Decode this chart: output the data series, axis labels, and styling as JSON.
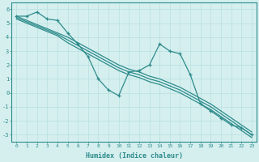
{
  "x": [
    0,
    1,
    2,
    3,
    4,
    5,
    6,
    7,
    8,
    9,
    10,
    11,
    12,
    13,
    14,
    15,
    16,
    17,
    18,
    19,
    20,
    21,
    22,
    23
  ],
  "line_volatile": [
    5.5,
    5.5,
    5.8,
    5.3,
    5.2,
    4.3,
    3.5,
    2.6,
    1.0,
    0.2,
    -0.2,
    1.5,
    1.6,
    2.0,
    3.5,
    3.0,
    2.8,
    1.3,
    -0.8,
    -1.3,
    -1.8,
    -2.3,
    -2.5,
    -3.0
  ],
  "line_upper": [
    5.5,
    5.2,
    4.9,
    4.6,
    4.3,
    4.0,
    3.6,
    3.2,
    2.8,
    2.4,
    2.0,
    1.7,
    1.5,
    1.2,
    1.0,
    0.7,
    0.4,
    0.0,
    -0.4,
    -0.8,
    -1.3,
    -1.8,
    -2.3,
    -2.8
  ],
  "line_mid": [
    5.4,
    5.1,
    4.8,
    4.5,
    4.2,
    3.8,
    3.4,
    3.0,
    2.6,
    2.2,
    1.8,
    1.5,
    1.3,
    1.0,
    0.8,
    0.5,
    0.2,
    -0.2,
    -0.6,
    -1.0,
    -1.5,
    -2.0,
    -2.5,
    -3.0
  ],
  "line_lower": [
    5.3,
    5.0,
    4.7,
    4.4,
    4.1,
    3.6,
    3.2,
    2.8,
    2.4,
    2.0,
    1.6,
    1.3,
    1.1,
    0.8,
    0.6,
    0.3,
    0.0,
    -0.4,
    -0.8,
    -1.2,
    -1.7,
    -2.2,
    -2.7,
    -3.2
  ],
  "color": "#2e8b8b",
  "bg_color": "#d5efef",
  "grid_color": "#b8dede",
  "xlabel": "Humidex (Indice chaleur)",
  "ylim": [
    -3.5,
    6.5
  ],
  "xlim": [
    -0.5,
    23.5
  ]
}
